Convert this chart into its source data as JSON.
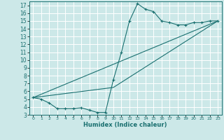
{
  "xlabel": "Humidex (Indice chaleur)",
  "bg_color": "#cce8e8",
  "grid_color": "#ffffff",
  "line_color": "#1a7070",
  "xlim": [
    -0.5,
    23.5
  ],
  "ylim": [
    3,
    17.5
  ],
  "yticks": [
    3,
    4,
    5,
    6,
    7,
    8,
    9,
    10,
    11,
    12,
    13,
    14,
    15,
    16,
    17
  ],
  "xticks": [
    0,
    1,
    2,
    3,
    4,
    5,
    6,
    7,
    8,
    9,
    10,
    11,
    12,
    13,
    14,
    15,
    16,
    17,
    18,
    19,
    20,
    21,
    22,
    23
  ],
  "xtick_labels": [
    "0",
    "1",
    "2",
    "3",
    "4",
    "5",
    "6",
    "7",
    "8",
    "9",
    "10",
    "11",
    "12",
    "13",
    "14",
    "15",
    "16",
    "17",
    "18",
    "19",
    "20",
    "21",
    "22",
    "23"
  ],
  "line1_x": [
    0,
    1,
    2,
    3,
    4,
    5,
    6,
    7,
    8,
    9,
    10,
    11,
    12,
    13,
    14,
    15,
    16,
    17,
    18,
    19,
    20,
    21,
    22,
    23
  ],
  "line1_y": [
    5.2,
    5.0,
    4.5,
    3.8,
    3.8,
    3.8,
    3.9,
    3.6,
    3.3,
    3.3,
    7.5,
    11.0,
    15.0,
    17.2,
    16.5,
    16.2,
    15.0,
    14.8,
    14.5,
    14.5,
    14.8,
    14.8,
    15.0,
    15.0
  ],
  "line2_x": [
    0,
    23
  ],
  "line2_y": [
    5.2,
    15.0
  ],
  "line3_x": [
    0,
    10,
    23
  ],
  "line3_y": [
    5.2,
    6.5,
    15.0
  ]
}
